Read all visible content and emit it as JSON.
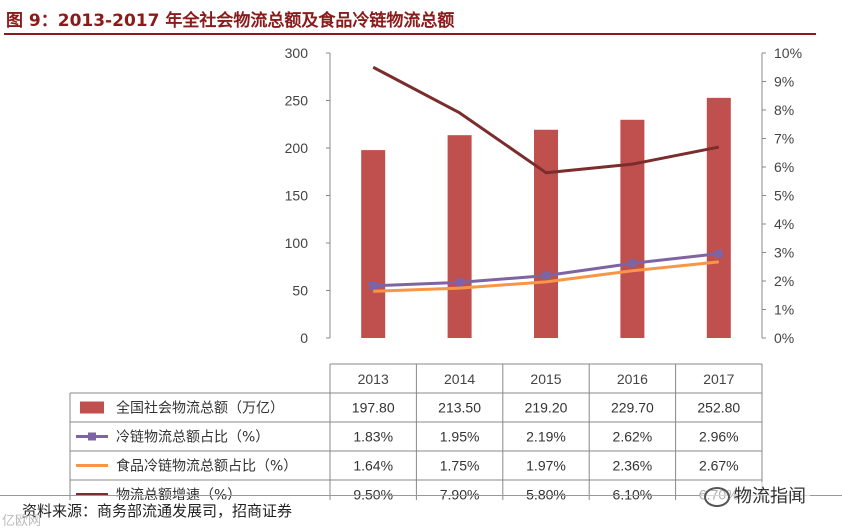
{
  "title": "图 9：2013-2017 年全社会物流总额及食品冷链物流总额",
  "source": "资料来源：商务部流通发展司，招商证券",
  "watermark_left": "亿欧网",
  "watermark_right": "物流指闻",
  "colors": {
    "bar": "#c0504d",
    "cold_chain_line": "#7f64a3",
    "food_line": "#f79646",
    "growth_line": "#7b2c2c",
    "title": "#8b1a1a"
  },
  "chart_data": {
    "type": "bar",
    "title": "图 9：2013-2017 年全社会物流总额及食品冷链物流总额",
    "categories": [
      "2013",
      "2014",
      "2015",
      "2016",
      "2017"
    ],
    "y_left": {
      "ticks": [
        "0",
        "50",
        "100",
        "150",
        "200",
        "250",
        "300"
      ],
      "range": [
        0,
        300
      ]
    },
    "y_right": {
      "ticks": [
        "0%",
        "1%",
        "2%",
        "3%",
        "4%",
        "5%",
        "6%",
        "7%",
        "8%",
        "9%",
        "10%"
      ],
      "range": [
        0,
        10
      ]
    },
    "series": [
      {
        "name": "全国社会物流总额（万亿）",
        "type": "bar",
        "axis": "left",
        "values": [
          197.8,
          213.5,
          219.2,
          229.7,
          252.8
        ],
        "labels": [
          "197.80",
          "213.50",
          "219.20",
          "229.70",
          "252.80"
        ]
      },
      {
        "name": "冷链物流总额占比（%）",
        "type": "line",
        "axis": "right",
        "marker": "square",
        "values": [
          1.83,
          1.95,
          2.19,
          2.62,
          2.96
        ],
        "labels": [
          "1.83%",
          "1.95%",
          "2.19%",
          "2.62%",
          "2.96%"
        ]
      },
      {
        "name": "食品冷链物流总额占比（%）",
        "type": "line",
        "axis": "right",
        "values": [
          1.64,
          1.75,
          1.97,
          2.36,
          2.67
        ],
        "labels": [
          "1.64%",
          "1.75%",
          "1.97%",
          "2.36%",
          "2.67%"
        ]
      },
      {
        "name": "物流总额增速（%）",
        "type": "line",
        "axis": "right",
        "values": [
          9.5,
          7.9,
          5.8,
          6.1,
          6.7
        ],
        "labels": [
          "9.50%",
          "7.90%",
          "5.80%",
          "6.10%",
          "6.70%"
        ]
      }
    ]
  }
}
